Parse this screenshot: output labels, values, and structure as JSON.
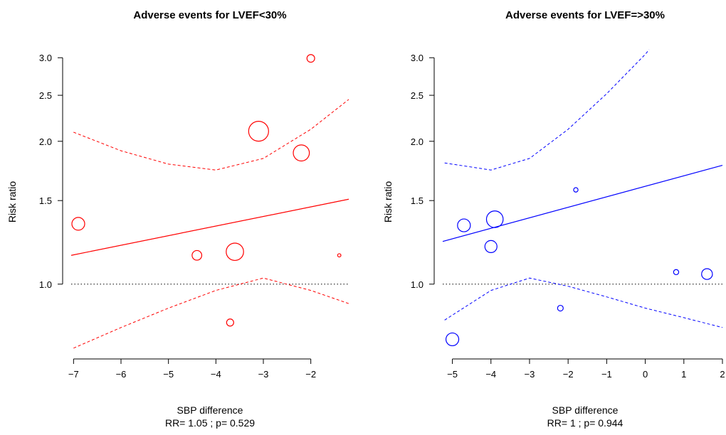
{
  "chart_data": [
    {
      "type": "scatter",
      "title": "Adverse events for LVEF<30%",
      "xlabel": "SBP difference",
      "ylabel": "Risk ratio",
      "footnote": "RR= 1.05 ; p= 0.529",
      "color": "#ff0000",
      "y_scale": "log",
      "xlim": [
        -7.05,
        -1.2
      ],
      "ylim": [
        0.72,
        3.25
      ],
      "xticks": [
        -7,
        -6,
        -5,
        -4,
        -3,
        -2
      ],
      "xtick_labels": [
        "−7",
        "−6",
        "−5",
        "−4",
        "−3",
        "−2"
      ],
      "yticks": [
        1.0,
        1.5,
        2.0,
        2.5,
        3.0
      ],
      "ytick_labels": [
        "1.0",
        "1.5",
        "2.0",
        "2.5",
        "3.0"
      ],
      "reference_line": 1.0,
      "points": [
        {
          "x": -6.9,
          "y": 1.34,
          "size": 1.0
        },
        {
          "x": -4.4,
          "y": 1.15,
          "size": 0.75
        },
        {
          "x": -3.6,
          "y": 1.17,
          "size": 1.35
        },
        {
          "x": -3.7,
          "y": 0.83,
          "size": 0.55
        },
        {
          "x": -3.1,
          "y": 2.1,
          "size": 1.55
        },
        {
          "x": -2.2,
          "y": 1.89,
          "size": 1.25
        },
        {
          "x": -2.0,
          "y": 2.99,
          "size": 0.6
        },
        {
          "x": -1.4,
          "y": 1.15,
          "size": 0.25
        }
      ],
      "fit_line": {
        "x": [
          -7.05,
          -1.2
        ],
        "y": [
          1.15,
          1.51
        ]
      },
      "ci_upper": {
        "x": [
          -7.0,
          -6.0,
          -5.0,
          -4.0,
          -3.0,
          -2.0,
          -1.2
        ],
        "y": [
          2.09,
          1.91,
          1.79,
          1.74,
          1.84,
          2.12,
          2.45
        ]
      },
      "ci_lower": {
        "x": [
          -7.0,
          -6.0,
          -5.0,
          -4.0,
          -3.0,
          -2.0,
          -1.2
        ],
        "y": [
          0.733,
          0.81,
          0.89,
          0.97,
          1.03,
          0.97,
          0.91
        ]
      }
    },
    {
      "type": "scatter",
      "title": "Adverse events for LVEF=>30%",
      "xlabel": "SBP difference",
      "ylabel": "Risk ratio",
      "footnote": "RR=  1 ; p= 0.944",
      "color": "#0000ff",
      "y_scale": "log",
      "xlim": [
        -5.25,
        2.0
      ],
      "ylim": [
        0.72,
        3.25
      ],
      "xticks": [
        -5,
        -4,
        -3,
        -2,
        -1,
        0,
        1,
        2
      ],
      "xtick_labels": [
        "−5",
        "−4",
        "−3",
        "−2",
        "−1",
        "0",
        "1",
        "2"
      ],
      "yticks": [
        1.0,
        1.5,
        2.0,
        2.5,
        3.0
      ],
      "ytick_labels": [
        "1.0",
        "1.5",
        "2.0",
        "2.5",
        "3.0"
      ],
      "reference_line": 1.0,
      "points": [
        {
          "x": -4.7,
          "y": 1.33,
          "size": 1.0
        },
        {
          "x": -3.9,
          "y": 1.37,
          "size": 1.3
        },
        {
          "x": -4.0,
          "y": 1.2,
          "size": 0.95
        },
        {
          "x": -1.8,
          "y": 1.58,
          "size": 0.35
        },
        {
          "x": 0.8,
          "y": 1.06,
          "size": 0.4
        },
        {
          "x": 1.6,
          "y": 1.05,
          "size": 0.85
        },
        {
          "x": -2.2,
          "y": 0.89,
          "size": 0.45
        },
        {
          "x": -5.0,
          "y": 0.765,
          "size": 1.0
        }
      ],
      "fit_line": {
        "x": [
          -5.25,
          2.0
        ],
        "y": [
          1.23,
          1.78
        ]
      },
      "ci_upper": {
        "x": [
          -5.2,
          -4.0,
          -3.0,
          -2.0,
          -1.0,
          0.0,
          0.1
        ],
        "y": [
          1.8,
          1.74,
          1.84,
          2.12,
          2.52,
          3.05,
          3.12
        ]
      },
      "ci_lower": {
        "x": [
          -5.2,
          -4.0,
          -3.0,
          -2.0,
          -1.0,
          0.0,
          1.0,
          2.0
        ],
        "y": [
          0.84,
          0.97,
          1.03,
          0.99,
          0.94,
          0.89,
          0.85,
          0.81
        ]
      }
    }
  ]
}
